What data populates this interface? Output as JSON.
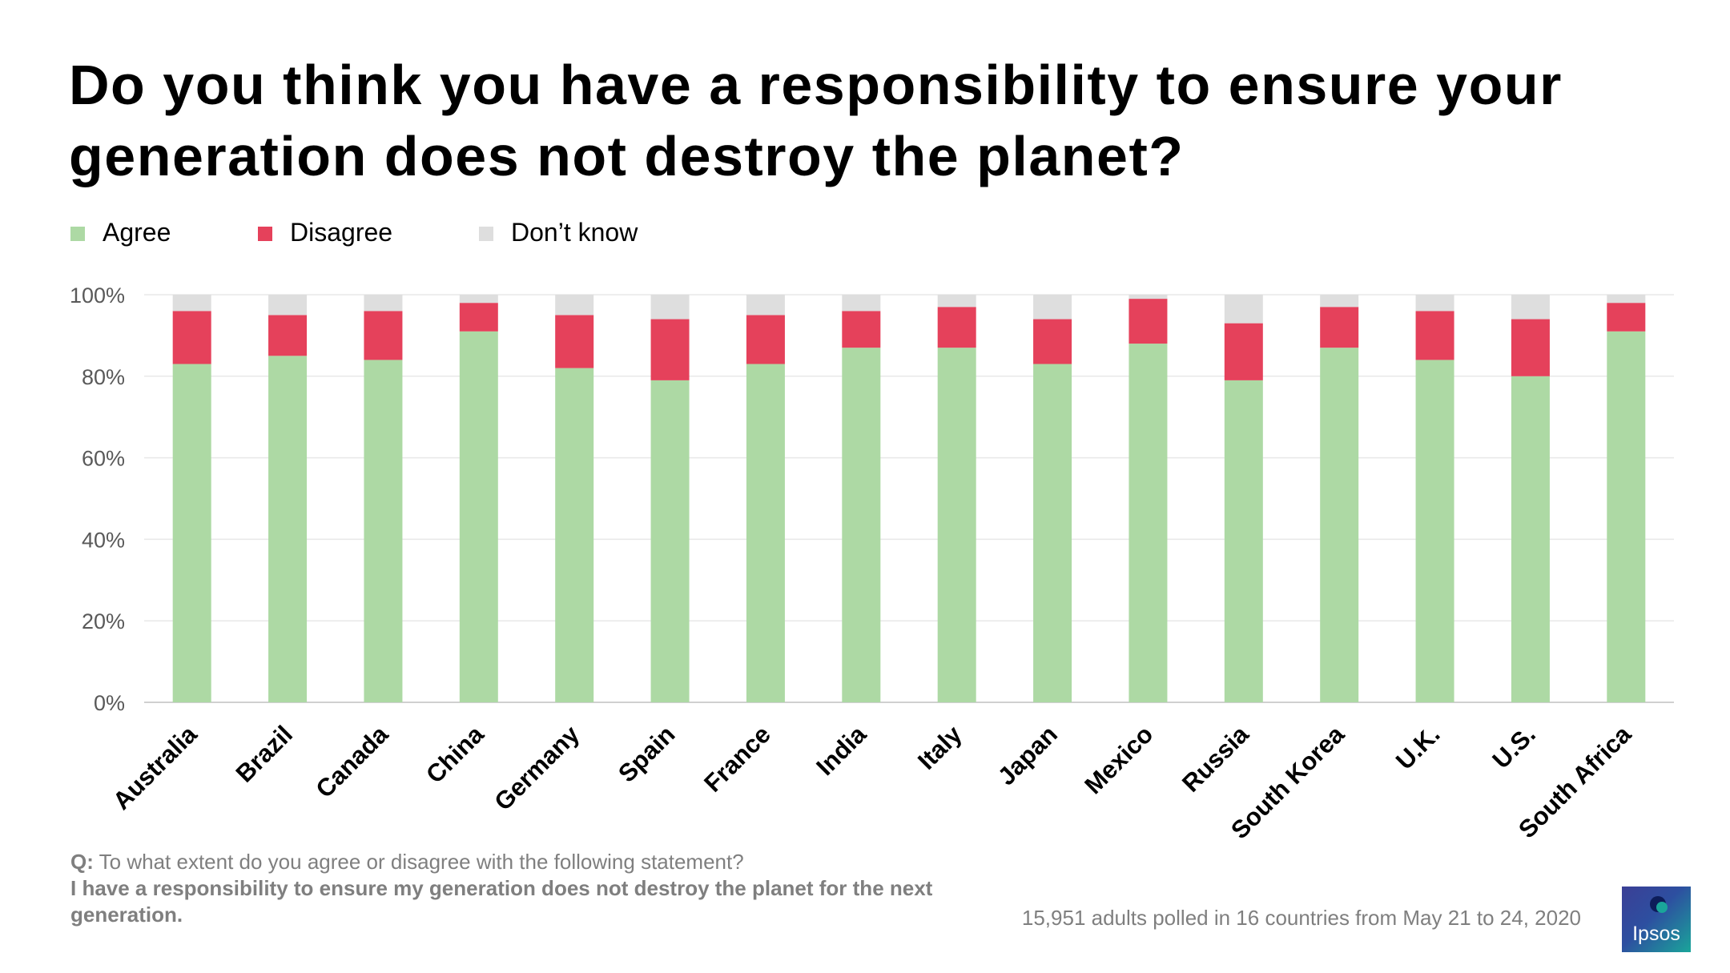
{
  "title": "Do you think you have a responsibility to ensure your generation does not destroy the planet?",
  "chart_data": {
    "type": "bar",
    "stacked": true,
    "categories": [
      "Australia",
      "Brazil",
      "Canada",
      "China",
      "Germany",
      "Spain",
      "France",
      "India",
      "Italy",
      "Japan",
      "Mexico",
      "Russia",
      "South Korea",
      "U.K.",
      "U.S.",
      "South Africa"
    ],
    "series": [
      {
        "name": "Agree",
        "color": "#add9a4",
        "values": [
          83,
          85,
          84,
          91,
          82,
          79,
          83,
          87,
          87,
          83,
          88,
          79,
          87,
          84,
          80,
          91
        ]
      },
      {
        "name": "Disagree",
        "color": "#e5415b",
        "values": [
          13,
          10,
          12,
          7,
          13,
          15,
          12,
          9,
          10,
          11,
          11,
          14,
          10,
          12,
          14,
          7
        ]
      },
      {
        "name": "Don’t know",
        "color": "#dedede",
        "values": [
          4,
          5,
          4,
          2,
          5,
          6,
          5,
          4,
          3,
          6,
          1,
          7,
          3,
          4,
          6,
          2
        ]
      }
    ],
    "yticks": [
      "0%",
      "20%",
      "40%",
      "60%",
      "80%",
      "100%"
    ],
    "ylim": [
      0,
      100
    ],
    "grid": true,
    "legend_position": "top-left"
  },
  "footnote": {
    "q_label": "Q:",
    "question": "To what extent do you agree or disagree with the following statement?",
    "statement": "I have a responsibility to ensure my generation does not destroy the planet for the next generation."
  },
  "source": "15,951 adults polled in 16 countries from May 21 to 24, 2020",
  "logo": {
    "text": "Ipsos",
    "icon": "ipsos-logo-icon"
  }
}
